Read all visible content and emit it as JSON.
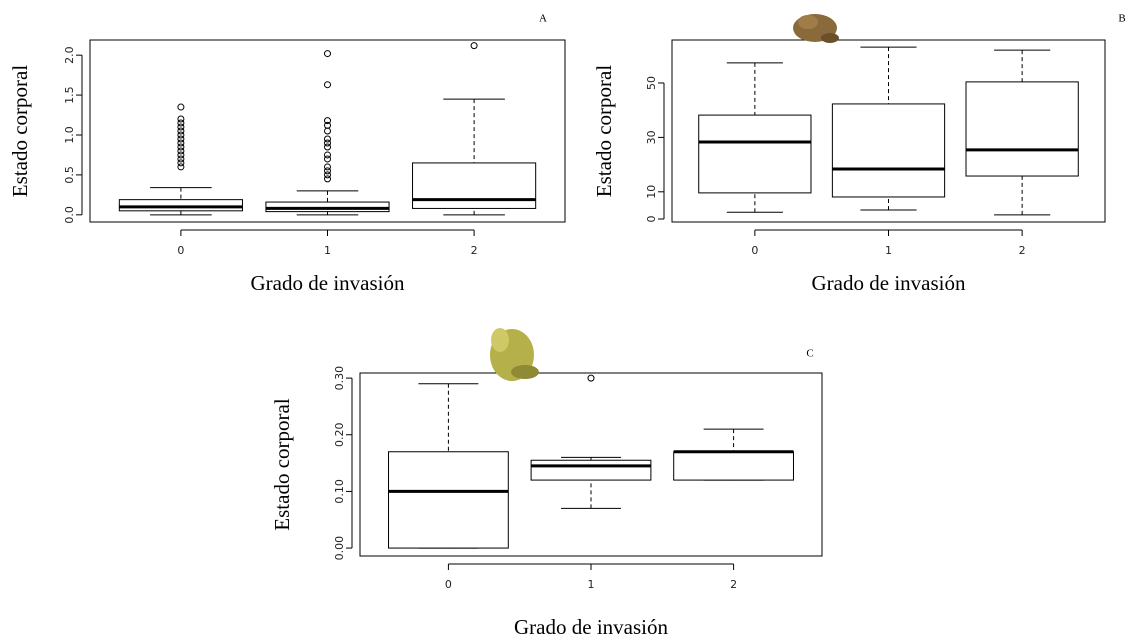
{
  "chart_data": [
    {
      "type": "box",
      "title": "A",
      "xlabel": "Grado de invasión",
      "ylabel": "Estado corporal",
      "categories": [
        "0",
        "1",
        "2"
      ],
      "ylim": [
        -0.09,
        2.19
      ],
      "yticks": [
        {
          "value": 0,
          "label": "0.0"
        },
        0.5,
        {
          "value": 1,
          "label": "1.0"
        },
        1.5,
        {
          "value": 2,
          "label": "2.0"
        }
      ],
      "boxes": [
        {
          "min": 0.0,
          "q1": 0.05,
          "median": 0.1,
          "q3": 0.19,
          "max": 0.34,
          "outliers": [
            1.35,
            1.2,
            1.15,
            1.1,
            1.05,
            1.0,
            0.95,
            0.9,
            0.85,
            0.8,
            0.75,
            0.7,
            0.65,
            0.6
          ]
        },
        {
          "min": 0.0,
          "q1": 0.04,
          "median": 0.08,
          "q3": 0.16,
          "max": 0.3,
          "outliers": [
            2.02,
            1.63,
            1.18,
            1.12,
            1.05,
            0.95,
            0.9,
            0.85,
            0.75,
            0.7,
            0.6,
            0.55,
            0.5,
            0.45
          ]
        },
        {
          "min": 0.0,
          "q1": 0.08,
          "median": 0.19,
          "q3": 0.65,
          "max": 1.45,
          "outliers": [
            2.12
          ]
        }
      ]
    },
    {
      "type": "box",
      "title": "B",
      "xlabel": "Grado de invasión",
      "ylabel": "Estado corporal",
      "categories": [
        "0",
        "1",
        "2"
      ],
      "ylim": [
        -1.1,
        65.8
      ],
      "yticks": [
        0,
        10,
        30,
        50
      ],
      "boxes": [
        {
          "min": 2.5,
          "q1": 9.6,
          "median": 28.3,
          "q3": 38.2,
          "max": 57.4,
          "outliers": []
        },
        {
          "min": 3.3,
          "q1": 8.1,
          "median": 18.4,
          "q3": 42.3,
          "max": 63.2,
          "outliers": []
        },
        {
          "min": 1.5,
          "q1": 15.8,
          "median": 25.4,
          "q3": 50.4,
          "max": 62.1,
          "outliers": []
        }
      ]
    },
    {
      "type": "box",
      "title": "C",
      "xlabel": "Grado de invasión",
      "ylabel": "Estado corporal",
      "categories": [
        "0",
        "1",
        "2"
      ],
      "ylim": [
        -0.014,
        0.309
      ],
      "yticks": [
        {
          "value": 0,
          "label": "0.00"
        },
        {
          "value": 0.1,
          "label": "0.10"
        },
        {
          "value": 0.2,
          "label": "0.20"
        },
        {
          "value": 0.3,
          "label": "0.30"
        }
      ],
      "boxes": [
        {
          "min": 0.0,
          "q1": 0.0,
          "median": 0.1,
          "q3": 0.17,
          "max": 0.29,
          "outliers": []
        },
        {
          "min": 0.07,
          "q1": 0.12,
          "median": 0.145,
          "q3": 0.155,
          "max": 0.16,
          "outliers": [
            0.3
          ]
        },
        {
          "min": 0.12,
          "q1": 0.12,
          "median": 0.17,
          "q3": 0.17,
          "max": 0.21,
          "outliers": []
        }
      ]
    }
  ]
}
